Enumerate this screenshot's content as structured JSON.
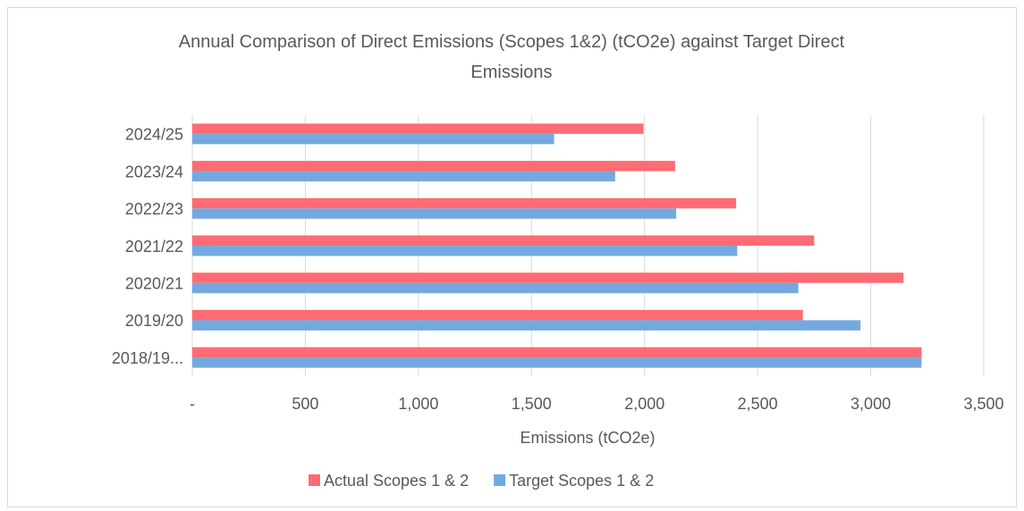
{
  "chart_data": {
    "type": "hbar",
    "title": "Annual Comparison of Direct Emissions (Scopes 1&2) (tCO2e) against Target Direct Emissions",
    "x_label": "Emissions (tCO2e)",
    "categories": [
      "2018/19...",
      "2019/20",
      "2020/21",
      "2021/22",
      "2022/23",
      "2023/24",
      "2024/25"
    ],
    "series": [
      {
        "name": "Actual Scopes 1 & 2",
        "color": "#ff6b73",
        "values": [
          3225,
          2700,
          3145,
          2750,
          2405,
          2135,
          1995
        ]
      },
      {
        "name": "Target Scopes 1 & 2",
        "color": "#74a9e0",
        "values": [
          3225,
          2955,
          2680,
          2410,
          2140,
          1870,
          1600
        ]
      }
    ],
    "xlim": [
      0,
      3500
    ],
    "xticks": [
      {
        "value": 0,
        "label": "-"
      },
      500,
      {
        "value": 1000,
        "label": "1,000"
      },
      {
        "value": 1500,
        "label": "1,500"
      },
      {
        "value": 2000,
        "label": "2,000"
      },
      {
        "value": 2500,
        "label": "2,500"
      },
      {
        "value": 3000,
        "label": "3,000"
      },
      {
        "value": 3500,
        "label": "3,500"
      }
    ],
    "grid": true,
    "legend": "bottom"
  }
}
